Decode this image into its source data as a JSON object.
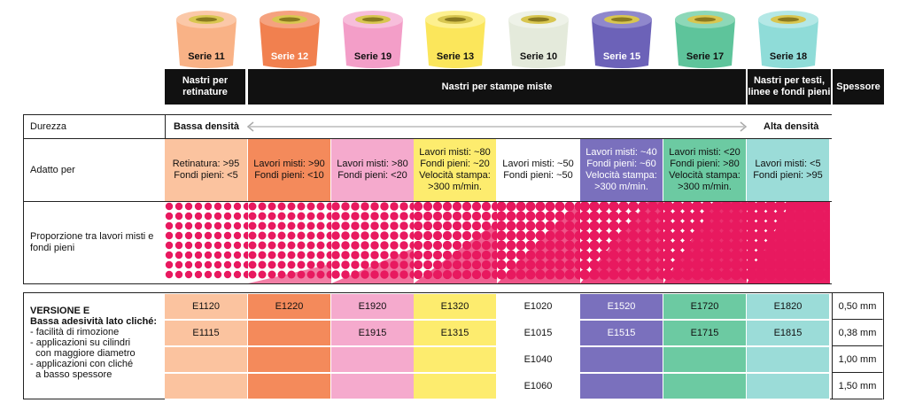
{
  "series": [
    {
      "label": "Serie 11",
      "color": "#f9b286",
      "cap": "#fbc8a8",
      "label_color": "#111"
    },
    {
      "label": "Serie 12",
      "color": "#f1804f",
      "cap": "#f5a27f",
      "label_color": "#fff"
    },
    {
      "label": "Serie 19",
      "color": "#f39ec8",
      "cap": "#f7bedb",
      "label_color": "#111"
    },
    {
      "label": "Serie 13",
      "color": "#fbe65b",
      "cap": "#fdf08f",
      "label_color": "#111"
    },
    {
      "label": "Serie 10",
      "color": "#e4eadb",
      "cap": "#eef2e8",
      "label_color": "#111"
    },
    {
      "label": "Serie 15",
      "color": "#6c62b8",
      "cap": "#8f87cc",
      "label_color": "#fff"
    },
    {
      "label": "Serie 17",
      "color": "#5ec49b",
      "cap": "#8dd8b8",
      "label_color": "#111"
    },
    {
      "label": "Serie 18",
      "color": "#8fdcd8",
      "cap": "#b4e8e6",
      "label_color": "#111"
    }
  ],
  "header": {
    "group1": "Nastri per retinature",
    "group2": "Nastri per stampe miste",
    "group3": "Nastri per testi, linee e fondi pieni",
    "thickness": "Spessore"
  },
  "hardness": {
    "label": "Durezza",
    "low": "Bassa densità",
    "high": "Alta densità"
  },
  "adatto": {
    "label": "Adatto per",
    "cells": [
      "Retinatura: >95\nFondi pieni: <5",
      "Lavori misti: >90\nFondi pieni: <10",
      "Lavori misti: >80\nFondi pieni: <20",
      "Lavori misti: ~80\nFondi pieni: ~20\nVelocità stampa:\n>300 m/min.",
      "Lavori misti: ~50\nFondi pieni: ~50",
      "Lavori misti: ~40\nFondi pieni: ~60\nVelocità stampa:\n>300 m/min.",
      "Lavori misti: <20\nFondi pieni: >80\nVelocità stampa:\n>300 m/min.",
      "Lavori misti: <5\nFondi pieni: >95"
    ]
  },
  "proportion": {
    "label": "Proporzione tra lavori misti e fondi pieni"
  },
  "versione": {
    "title": "VERSIONE E",
    "subtitle": "Bassa adesività lato cliché:",
    "bullets": "- facilità di rimozione\n- applicazioni su cilindri\n  con maggiore diametro\n- applicazioni con cliché\n  a basso spessore"
  },
  "versions": [
    [
      "E1120",
      "E1220",
      "E1920",
      "E1320",
      "E1020",
      "E1520",
      "E1720",
      "E1820"
    ],
    [
      "E1115",
      "",
      "E1915",
      "E1315",
      "E1015",
      "E1515",
      "E1715",
      "E1815"
    ],
    [
      "",
      "",
      "",
      "",
      "E1040",
      "",
      "",
      ""
    ],
    [
      "",
      "",
      "",
      "",
      "E1060",
      "",
      "",
      ""
    ]
  ],
  "thickness": [
    "0,50 mm",
    "0,38 mm",
    "1,00 mm",
    "1,50 mm"
  ],
  "colors": {
    "ink": "#e8195f",
    "light_cells": [
      "#fbc39f",
      "#f48a5b",
      "#f5aacd",
      "#fdec6e",
      "#ffffff",
      "#7a70bd",
      "#6ccaa2",
      "#9bdcd8"
    ]
  }
}
